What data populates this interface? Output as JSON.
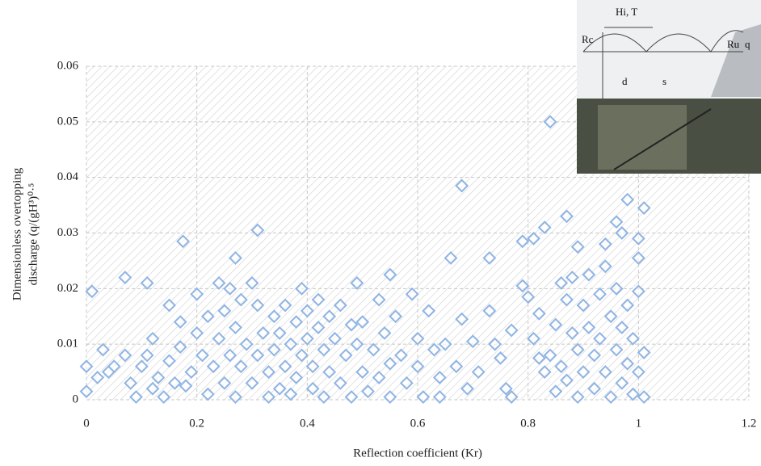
{
  "chart_data": {
    "type": "scatter",
    "x_label": "Reflection coefficient (Kr)",
    "y_label": [
      "Dimensionless overtopping",
      "discharge (q/(gH³)⁰·⁵"
    ],
    "color": "#8fb4e3",
    "xlim": [
      0,
      1.2
    ],
    "xticks": [
      0,
      0.2,
      0.4,
      0.6,
      0.8,
      1,
      1.2
    ],
    "ylim": [
      0,
      0.06
    ],
    "yticks": [
      0,
      0.01,
      0.02,
      0.03,
      0.04,
      0.05,
      0.06
    ],
    "grid": true,
    "x": [
      0.01,
      0.07,
      0.11,
      0.175,
      0.31,
      0.68,
      0.84,
      0.98,
      1.01,
      0.96,
      0.97,
      0.87,
      0.83,
      1.0,
      0.94,
      0.89,
      0.79,
      0.81,
      0.66,
      0.73,
      0.27,
      0.55,
      0.49,
      0.39,
      0.3,
      0.24,
      0.2,
      0.26,
      0.15,
      0.17,
      0.12,
      0.0,
      0.03,
      0.02,
      0.05,
      0.0,
      0.04,
      0.07,
      0.08,
      0.09,
      0.1,
      0.11,
      0.12,
      0.13,
      0.14,
      0.15,
      0.16,
      0.17,
      0.18,
      0.19,
      0.2,
      0.21,
      0.22,
      0.22,
      0.23,
      0.24,
      0.25,
      0.25,
      0.26,
      0.27,
      0.27,
      0.28,
      0.28,
      0.29,
      0.3,
      0.31,
      0.31,
      0.32,
      0.33,
      0.33,
      0.34,
      0.34,
      0.35,
      0.35,
      0.36,
      0.36,
      0.37,
      0.37,
      0.38,
      0.38,
      0.39,
      0.4,
      0.4,
      0.41,
      0.41,
      0.42,
      0.42,
      0.43,
      0.43,
      0.44,
      0.44,
      0.45,
      0.46,
      0.46,
      0.47,
      0.48,
      0.48,
      0.49,
      0.5,
      0.5,
      0.51,
      0.52,
      0.53,
      0.53,
      0.54,
      0.55,
      0.55,
      0.56,
      0.57,
      0.58,
      0.59,
      0.6,
      0.6,
      0.61,
      0.62,
      0.63,
      0.64,
      0.64,
      0.65,
      0.67,
      0.68,
      0.69,
      0.7,
      0.71,
      0.73,
      0.74,
      0.75,
      0.76,
      0.77,
      0.77,
      0.79,
      0.8,
      0.81,
      0.82,
      0.82,
      0.83,
      0.84,
      0.85,
      0.85,
      0.86,
      0.86,
      0.87,
      0.87,
      0.88,
      0.88,
      0.89,
      0.89,
      0.9,
      0.9,
      0.91,
      0.91,
      0.92,
      0.92,
      0.93,
      0.93,
      0.94,
      0.94,
      0.95,
      0.95,
      0.96,
      0.96,
      0.97,
      0.97,
      0.98,
      0.98,
      0.99,
      0.99,
      1.0,
      1.0,
      1.0,
      1.01,
      1.01
    ],
    "y": [
      0.0195,
      0.022,
      0.021,
      0.0285,
      0.0305,
      0.0385,
      0.05,
      0.036,
      0.0345,
      0.032,
      0.03,
      0.033,
      0.031,
      0.029,
      0.028,
      0.0275,
      0.0285,
      0.029,
      0.0255,
      0.0255,
      0.0255,
      0.0225,
      0.021,
      0.02,
      0.021,
      0.021,
      0.019,
      0.02,
      0.017,
      0.014,
      0.011,
      0.006,
      0.009,
      0.004,
      0.006,
      0.0015,
      0.005,
      0.008,
      0.003,
      0.0005,
      0.006,
      0.008,
      0.002,
      0.004,
      0.0005,
      0.007,
      0.003,
      0.0095,
      0.0025,
      0.005,
      0.012,
      0.008,
      0.001,
      0.015,
      0.006,
      0.011,
      0.003,
      0.016,
      0.008,
      0.013,
      0.0005,
      0.018,
      0.006,
      0.01,
      0.003,
      0.017,
      0.008,
      0.012,
      0.0005,
      0.005,
      0.015,
      0.009,
      0.002,
      0.012,
      0.017,
      0.006,
      0.01,
      0.001,
      0.014,
      0.004,
      0.008,
      0.016,
      0.011,
      0.002,
      0.006,
      0.018,
      0.013,
      0.009,
      0.0005,
      0.015,
      0.005,
      0.011,
      0.017,
      0.003,
      0.008,
      0.0135,
      0.0005,
      0.01,
      0.005,
      0.014,
      0.0015,
      0.009,
      0.018,
      0.004,
      0.012,
      0.0065,
      0.0005,
      0.015,
      0.008,
      0.003,
      0.019,
      0.011,
      0.006,
      0.0005,
      0.016,
      0.009,
      0.004,
      0.0005,
      0.01,
      0.006,
      0.0145,
      0.002,
      0.0105,
      0.005,
      0.016,
      0.01,
      0.0075,
      0.002,
      0.0125,
      0.0005,
      0.0205,
      0.0185,
      0.011,
      0.0075,
      0.0155,
      0.005,
      0.008,
      0.0015,
      0.0135,
      0.021,
      0.006,
      0.018,
      0.0035,
      0.012,
      0.022,
      0.009,
      0.0005,
      0.017,
      0.005,
      0.0225,
      0.013,
      0.008,
      0.002,
      0.019,
      0.011,
      0.024,
      0.005,
      0.015,
      0.0005,
      0.009,
      0.02,
      0.013,
      0.003,
      0.017,
      0.0065,
      0.011,
      0.001,
      0.0195,
      0.0255,
      0.005,
      0.0085,
      0.0005
    ]
  },
  "inset": {
    "wave": "Hi, T",
    "rc": "Rc",
    "ru": "Ru",
    "q": "q",
    "d": "d",
    "s": "s"
  }
}
